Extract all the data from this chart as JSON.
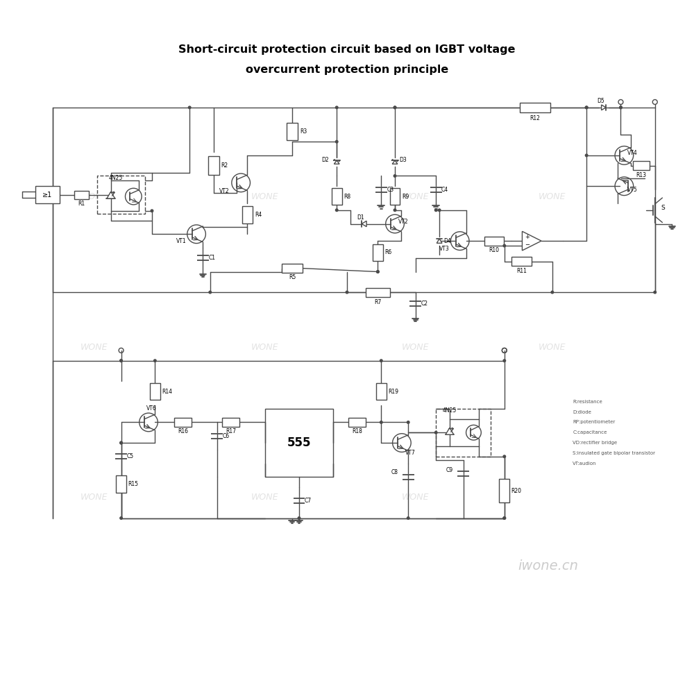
{
  "title_line1": "Short-circuit protection circuit based on IGBT voltage",
  "title_line2": "overcurrent protection principle",
  "bg_color": "#ffffff",
  "lc": "#4a4a4a",
  "watermark_color": "#d0d0d0",
  "legend": [
    "R:resistance",
    "D:diode",
    "RP:potentiometer",
    "C:capacitance",
    "VD:rectifier bridge",
    "S:insulated gate bipolar transistor",
    "VT:audion"
  ],
  "watermark": "iwone.cn"
}
